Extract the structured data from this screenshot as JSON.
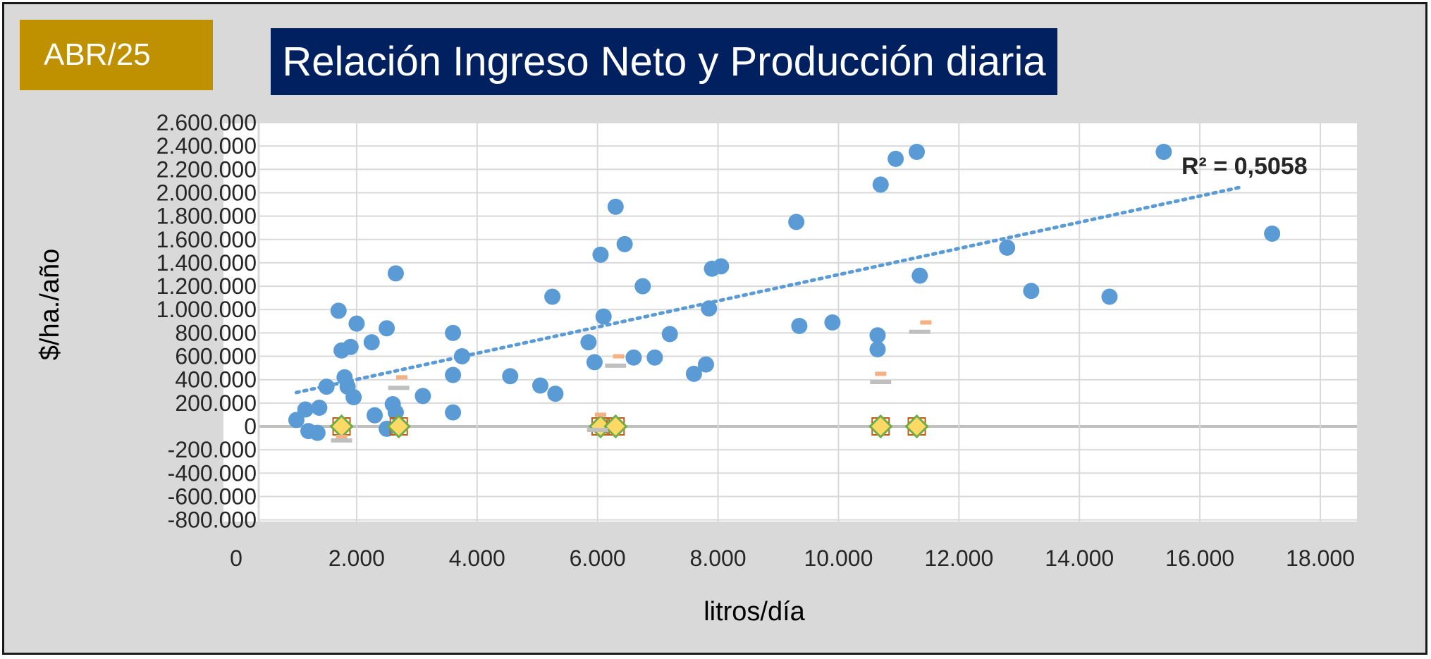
{
  "badge": {
    "label": "ABR/25"
  },
  "colors": {
    "badge_bg": "#bf9000",
    "title_bg": "#002060",
    "scatter": "#5b9bd5",
    "trend": "#5b9bd5",
    "diamond_fill": "#ffd966",
    "diamond_stroke": "#70ad47",
    "diamond_square": "#c55a11",
    "dash_orange": "#f4b183",
    "dash_gray": "#bfbfbf"
  },
  "chart_data": {
    "type": "scatter",
    "title": "Relación Ingreso Neto y Producción diaria",
    "xlabel": "litros/día",
    "ylabel": "$/ha./año",
    "xlim": [
      0,
      18000
    ],
    "ylim": [
      -800000,
      2600000
    ],
    "x_ticks": [
      "0",
      "2.000",
      "4.000",
      "6.000",
      "8.000",
      "10.000",
      "12.000",
      "14.000",
      "16.000",
      "18.000"
    ],
    "y_ticks": [
      "2.600.000",
      "2.400.000",
      "2.200.000",
      "2.000.000",
      "1.800.000",
      "1.600.000",
      "1.400.000",
      "1.200.000",
      "1.000.000",
      "800.000",
      "600.000",
      "400.000",
      "200.000",
      "0",
      "-200.000",
      "-400.000",
      "-600.000",
      "-800.000"
    ],
    "grid": true,
    "r2_label": "R² = 0,5058",
    "trendline": {
      "x": [
        1000,
        16700
      ],
      "y": [
        290000,
        2050000
      ],
      "style": "dotted"
    },
    "series": [
      {
        "marker": "circle",
        "points": [
          [
            1000,
            55000
          ],
          [
            1150,
            145000
          ],
          [
            1200,
            -40000
          ],
          [
            1350,
            -55000
          ],
          [
            1380,
            160000
          ],
          [
            1500,
            340000
          ],
          [
            1700,
            990000
          ],
          [
            1750,
            650000
          ],
          [
            1800,
            420000
          ],
          [
            1850,
            340000
          ],
          [
            1900,
            680000
          ],
          [
            1950,
            250000
          ],
          [
            2000,
            880000
          ],
          [
            2250,
            720000
          ],
          [
            2300,
            95000
          ],
          [
            2500,
            840000
          ],
          [
            2500,
            -20000
          ],
          [
            2600,
            190000
          ],
          [
            2650,
            120000
          ],
          [
            2650,
            1310000
          ],
          [
            3100,
            260000
          ],
          [
            3600,
            800000
          ],
          [
            3600,
            440000
          ],
          [
            3600,
            120000
          ],
          [
            3750,
            600000
          ],
          [
            4550,
            430000
          ],
          [
            5050,
            350000
          ],
          [
            5250,
            1110000
          ],
          [
            5300,
            280000
          ],
          [
            5850,
            720000
          ],
          [
            5950,
            550000
          ],
          [
            6050,
            1470000
          ],
          [
            6100,
            940000
          ],
          [
            6300,
            1880000
          ],
          [
            6450,
            1560000
          ],
          [
            6600,
            590000
          ],
          [
            6750,
            1200000
          ],
          [
            6950,
            590000
          ],
          [
            7200,
            790000
          ],
          [
            7600,
            450000
          ],
          [
            7800,
            530000
          ],
          [
            7850,
            1010000
          ],
          [
            7900,
            1350000
          ],
          [
            8050,
            1370000
          ],
          [
            9300,
            1750000
          ],
          [
            9350,
            860000
          ],
          [
            9900,
            890000
          ],
          [
            10650,
            780000
          ],
          [
            10650,
            660000
          ],
          [
            10700,
            2070000
          ],
          [
            10950,
            2290000
          ],
          [
            11300,
            2350000
          ],
          [
            11350,
            1290000
          ],
          [
            12800,
            1530000
          ],
          [
            13200,
            1160000
          ],
          [
            14500,
            1110000
          ],
          [
            15400,
            2350000
          ],
          [
            17200,
            1650000
          ]
        ]
      },
      {
        "marker": "diamond",
        "points": [
          [
            1750,
            0
          ],
          [
            2700,
            0
          ],
          [
            6050,
            0
          ],
          [
            6300,
            0
          ],
          [
            10700,
            0
          ],
          [
            11300,
            0
          ]
        ]
      },
      {
        "marker": "dash-orange",
        "points": [
          [
            1750,
            -90000
          ],
          [
            2750,
            420000
          ],
          [
            6050,
            100000
          ],
          [
            6350,
            600000
          ],
          [
            10700,
            450000
          ],
          [
            11450,
            890000
          ]
        ]
      },
      {
        "marker": "dash-gray",
        "points": [
          [
            1750,
            -120000
          ],
          [
            2700,
            330000
          ],
          [
            6000,
            -30000
          ],
          [
            6300,
            520000
          ],
          [
            10700,
            380000
          ],
          [
            11350,
            810000
          ]
        ]
      }
    ]
  }
}
